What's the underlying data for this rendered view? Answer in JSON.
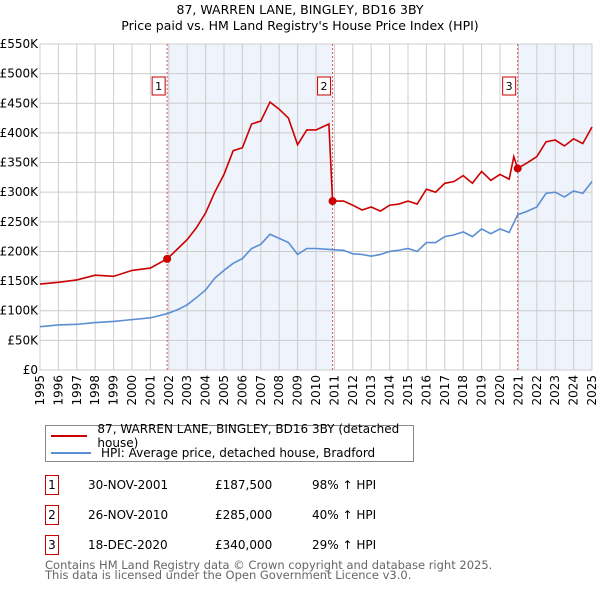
{
  "chart_data": {
    "type": "line",
    "title": "87, WARREN LANE, BINGLEY, BD16 3BY",
    "subtitle": "Price paid vs. HM Land Registry's House Price Index (HPI)",
    "xlim": [
      1995,
      2025
    ],
    "ylim": [
      0,
      550000
    ],
    "yticks": [
      0,
      50000,
      100000,
      150000,
      200000,
      250000,
      300000,
      350000,
      400000,
      450000,
      500000,
      550000
    ],
    "ytick_labels": [
      "£0",
      "£50K",
      "£100K",
      "£150K",
      "£200K",
      "£250K",
      "£300K",
      "£350K",
      "£400K",
      "£450K",
      "£500K",
      "£550K"
    ],
    "xticks": [
      1995,
      1996,
      1997,
      1998,
      1999,
      2000,
      2001,
      2002,
      2003,
      2004,
      2005,
      2006,
      2007,
      2008,
      2009,
      2010,
      2011,
      2012,
      2013,
      2014,
      2015,
      2016,
      2017,
      2018,
      2019,
      2020,
      2021,
      2022,
      2023,
      2024,
      2025
    ],
    "grid": true,
    "shaded_ranges": [
      [
        2001.91,
        2010.9
      ],
      [
        2020.96,
        2025
      ]
    ],
    "series": [
      {
        "name": "87, WARREN LANE, BINGLEY, BD16 3BY (detached house)",
        "color": "#cc0000",
        "x": [
          1995,
          1996,
          1997,
          1998,
          1999,
          2000,
          2001,
          2001.91,
          2002.5,
          2003,
          2003.5,
          2004,
          2004.5,
          2005,
          2005.5,
          2006,
          2006.5,
          2007,
          2007.5,
          2008,
          2008.5,
          2009,
          2009.5,
          2010,
          2010.7,
          2010.9,
          2011.5,
          2012,
          2012.5,
          2013,
          2013.5,
          2014,
          2014.5,
          2015,
          2015.5,
          2016,
          2016.5,
          2017,
          2017.5,
          2018,
          2018.5,
          2019,
          2019.5,
          2020,
          2020.5,
          2020.75,
          2020.96,
          2021.5,
          2022,
          2022.5,
          2023,
          2023.5,
          2024,
          2024.5,
          2025
        ],
        "y": [
          145000,
          148000,
          152000,
          160000,
          158000,
          168000,
          172000,
          187500,
          205000,
          220000,
          240000,
          265000,
          300000,
          330000,
          370000,
          375000,
          415000,
          420000,
          452000,
          440000,
          425000,
          380000,
          405000,
          405000,
          415000,
          285000,
          285000,
          278000,
          270000,
          275000,
          268000,
          278000,
          280000,
          285000,
          280000,
          305000,
          300000,
          315000,
          318000,
          328000,
          315000,
          335000,
          320000,
          330000,
          322000,
          360000,
          340000,
          350000,
          360000,
          385000,
          388000,
          378000,
          390000,
          382000,
          410000
        ]
      },
      {
        "name": "HPI: Average price, detached house, Bradford",
        "color": "#5b8fd4",
        "x": [
          1995,
          1996,
          1997,
          1998,
          1999,
          2000,
          2001,
          2001.91,
          2002.5,
          2003,
          2003.5,
          2004,
          2004.5,
          2005,
          2005.5,
          2006,
          2006.5,
          2007,
          2007.5,
          2008,
          2008.5,
          2009,
          2009.5,
          2010,
          2010.9,
          2011.5,
          2012,
          2012.5,
          2013,
          2013.5,
          2014,
          2014.5,
          2015,
          2015.5,
          2016,
          2016.5,
          2017,
          2017.5,
          2018,
          2018.5,
          2019,
          2019.5,
          2020,
          2020.5,
          2020.96,
          2021.5,
          2022,
          2022.5,
          2023,
          2023.5,
          2024,
          2024.5,
          2025
        ],
        "y": [
          73000,
          76000,
          77000,
          80000,
          82000,
          85000,
          88000,
          95000,
          102000,
          110000,
          122000,
          135000,
          155000,
          168000,
          180000,
          188000,
          205000,
          212000,
          229000,
          222000,
          215000,
          195000,
          205000,
          205000,
          203000,
          202000,
          196000,
          195000,
          192000,
          195000,
          200000,
          202000,
          205000,
          200000,
          215000,
          215000,
          225000,
          228000,
          233000,
          225000,
          238000,
          230000,
          238000,
          232000,
          262000,
          268000,
          275000,
          298000,
          300000,
          292000,
          302000,
          298000,
          318000
        ]
      }
    ],
    "sales": [
      {
        "label": "1",
        "x": 2001.91,
        "y": 187500,
        "date": "30-NOV-2001",
        "price": "£187,500",
        "hpi": "98% ↑ HPI"
      },
      {
        "label": "2",
        "x": 2010.9,
        "y": 285000,
        "date": "26-NOV-2010",
        "price": "£285,000",
        "hpi": "40% ↑ HPI"
      },
      {
        "label": "3",
        "x": 2020.96,
        "y": 340000,
        "date": "18-DEC-2020",
        "price": "£340,000",
        "hpi": "29% ↑ HPI"
      }
    ]
  },
  "legend": {
    "red": "87, WARREN LANE, BINGLEY, BD16 3BY (detached house)",
    "blue": "HPI: Average price, detached house, Bradford"
  },
  "footer": [
    "Contains HM Land Registry data © Crown copyright and database right 2025.",
    "This data is licensed under the Open Government Licence v3.0."
  ]
}
